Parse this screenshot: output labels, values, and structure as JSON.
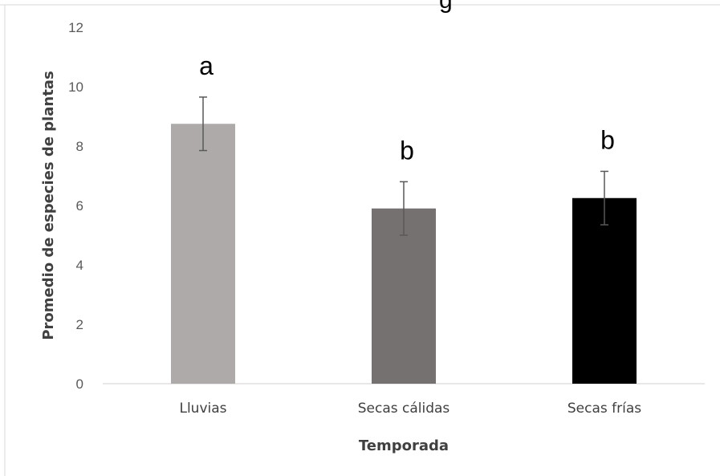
{
  "chart_data": {
    "type": "bar",
    "title_fragment": "g",
    "xlabel": "Temporada",
    "ylabel": "Promedio de especies de plantas",
    "ylim": [
      0,
      12
    ],
    "yticks": [
      0,
      2,
      4,
      6,
      8,
      10,
      12
    ],
    "grid": false,
    "legend": "none",
    "categories": [
      "Lluvias",
      "Secas cálidas",
      "Secas frías"
    ],
    "values": [
      8.75,
      5.9,
      6.25
    ],
    "errors": [
      0.9,
      0.9,
      0.9
    ],
    "significance_letters": [
      "a",
      "b",
      "b"
    ],
    "colors": [
      "#aeaaaa",
      "#767171",
      "#000000"
    ]
  }
}
